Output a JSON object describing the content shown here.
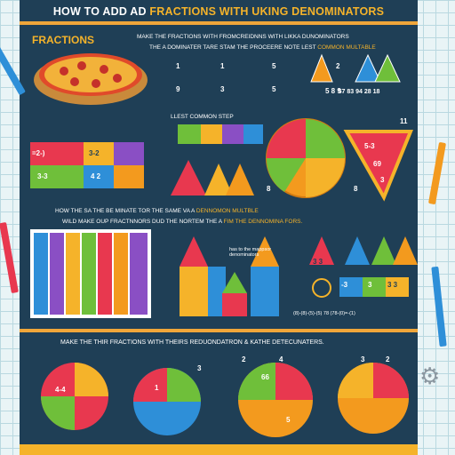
{
  "title": {
    "main": "HOW TO ADD AD",
    "accent": "FRACTIONS WITH UKING DENOMINATORS"
  },
  "section_label": "FRACTIONS",
  "instructions": {
    "line1": "MAKE THE FRACTIONS WITH FROMCREIDNNS WITH LIKKA DUNOMINATORS",
    "line2_prefix": "THE A DOMINATER TARE STAM THE PROCEERE NOTE LEST",
    "line2_accent": "COMMON MULTABLE"
  },
  "least_common_step": "LLEST COMMON STEP",
  "middle": {
    "line1_prefix": "HOW THE SA THE BE MINATE TOR THE SAME VA A",
    "line1_accent": "DENNOMON MULTBLE",
    "line2_prefix": "WILD MAKE OUP FRACTNNORS DUD THE NORTEM THE A",
    "line2_accent": "FIM THE DENNOMINA FORS."
  },
  "hint": "has to the mappsor denominators",
  "bottom_heading": "MAKE THE THIR FRACTIONS WITH THEIRS REDUONDATRON & KATHE DETECUNATERS.",
  "equations": {
    "top_row": [
      "1",
      "1",
      "5",
      "2"
    ],
    "top_bottom": [
      "9",
      "3",
      "5",
      "5 8 9"
    ],
    "colored_grid": [
      "=2-)",
      "3-2",
      "3-3",
      "4 2"
    ],
    "number_strip": "57 83 94 28 18",
    "numbers_right": [
      "11",
      "8",
      "8"
    ],
    "pizza_slice": [
      "5-3",
      "69",
      "3"
    ],
    "middle_fracs": [
      "-3",
      "3",
      "3 3",
      "3 3"
    ],
    "tiny_note": "(8)-(8)-(5)-(5) 78 (78-(0)=-(1)"
  },
  "pies_labels": [
    "1",
    "2",
    "3",
    "4",
    "5",
    "4-4",
    "66",
    "3",
    "2"
  ],
  "colors": {
    "board": "#1f3f56",
    "accent": "#f5b32a",
    "red": "#e8384f",
    "green": "#6fbf3a",
    "blue": "#2e8fd8",
    "purple": "#8a4fc4",
    "orange": "#f39a1e"
  }
}
